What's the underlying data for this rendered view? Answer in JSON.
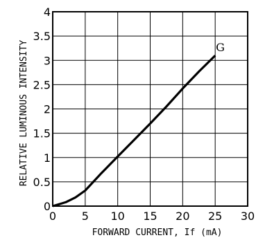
{
  "chart_data": {
    "type": "line",
    "xlabel": "FORWARD CURRENT, If (mA)",
    "ylabel": "RELATIVE LUMINOUS INTENSITY",
    "xlim": [
      0,
      30
    ],
    "ylim": [
      0,
      4
    ],
    "xticks": [
      "0",
      "5",
      "10",
      "15",
      "20",
      "25",
      "30"
    ],
    "yticks": [
      "0",
      "0.5",
      "1",
      "1.5",
      "2",
      "2.5",
      "3",
      "3.5",
      "4"
    ],
    "grid": true,
    "series": [
      {
        "name": "G",
        "x": [
          0,
          2,
          3.5,
          5,
          7.5,
          10,
          12.5,
          15,
          17.5,
          20,
          22.5,
          25
        ],
        "y": [
          0,
          0.08,
          0.18,
          0.32,
          0.68,
          1.02,
          1.36,
          1.7,
          2.05,
          2.42,
          2.77,
          3.1
        ]
      }
    ]
  }
}
